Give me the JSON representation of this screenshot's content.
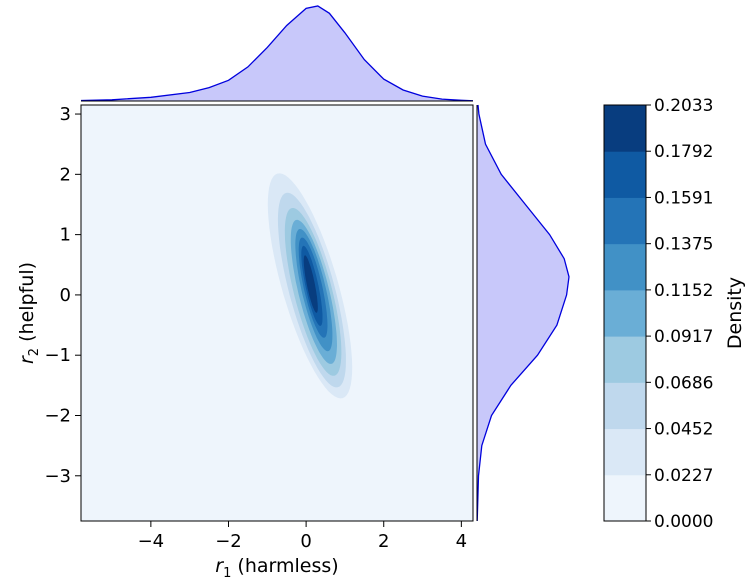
{
  "chart_data": {
    "type": "heatmap",
    "subtype": "bivariate-kde-contour-with-marginals",
    "title": "",
    "xlabel": {
      "base": "r",
      "sub": "1",
      "rest": " (harmless)"
    },
    "ylabel": {
      "base": "r",
      "sub": "2",
      "rest": " (helpful)"
    },
    "xlim": [
      -5.8,
      4.3
    ],
    "ylim": [
      -3.75,
      3.15
    ],
    "x_ticks": [
      -4,
      -2,
      0,
      2,
      4
    ],
    "y_ticks": [
      -3,
      -2,
      -1,
      0,
      1,
      2,
      3
    ],
    "x_tick_labels": [
      "−4",
      "−2",
      "0",
      "2",
      "4"
    ],
    "y_tick_labels": [
      "−3",
      "−2",
      "−1",
      "0",
      "1",
      "2",
      "3"
    ],
    "grid": false,
    "colorbar": {
      "label": "Density",
      "levels": [
        0.0,
        0.0227,
        0.0452,
        0.0686,
        0.0917,
        0.1152,
        0.1375,
        0.1591,
        0.1792,
        0.2033
      ],
      "level_labels": [
        "0.0000",
        "0.0227",
        "0.0452",
        "0.0686",
        "0.0917",
        "0.1152",
        "0.1375",
        "0.1591",
        "0.1792",
        "0.2033"
      ],
      "colors": [
        "#eef5fc",
        "#dae8f6",
        "#bfd8ed",
        "#9dcae1",
        "#6aaed6",
        "#4191c6",
        "#2474b7",
        "#0f5aa3",
        "#083d7f"
      ]
    },
    "contours": [
      {
        "level": 0.0227,
        "cx": 0.1,
        "cy": 0.15,
        "rx": 2.05,
        "ry": 0.68,
        "angle_deg": -64
      },
      {
        "level": 0.0452,
        "cx": 0.15,
        "cy": 0.08,
        "rx": 1.75,
        "ry": 0.56,
        "angle_deg": -66
      },
      {
        "level": 0.0686,
        "cx": 0.18,
        "cy": 0.05,
        "rx": 1.5,
        "ry": 0.47,
        "angle_deg": -67
      },
      {
        "level": 0.0917,
        "cx": 0.2,
        "cy": 0.05,
        "rx": 1.28,
        "ry": 0.38,
        "angle_deg": -68
      },
      {
        "level": 0.1152,
        "cx": 0.2,
        "cy": 0.08,
        "rx": 1.08,
        "ry": 0.3,
        "angle_deg": -69
      },
      {
        "level": 0.1375,
        "cx": 0.18,
        "cy": 0.12,
        "rx": 0.88,
        "ry": 0.23,
        "angle_deg": -70
      },
      {
        "level": 0.1591,
        "cx": 0.15,
        "cy": 0.15,
        "rx": 0.7,
        "ry": 0.16,
        "angle_deg": -71
      },
      {
        "level": 0.1792,
        "cx": 0.12,
        "cy": 0.18,
        "rx": 0.5,
        "ry": 0.1,
        "angle_deg": -72
      }
    ],
    "marginal_x": {
      "x": [
        -5.8,
        -5.0,
        -4.0,
        -3.0,
        -2.5,
        -2.0,
        -1.5,
        -1.0,
        -0.5,
        0.0,
        0.3,
        0.6,
        1.0,
        1.5,
        2.0,
        2.5,
        3.0,
        3.5,
        4.0,
        4.3
      ],
      "density": [
        0.002,
        0.005,
        0.015,
        0.035,
        0.055,
        0.085,
        0.14,
        0.22,
        0.31,
        0.38,
        0.39,
        0.36,
        0.28,
        0.17,
        0.09,
        0.045,
        0.02,
        0.008,
        0.003,
        0.001
      ],
      "fill": "#c8c8fa",
      "line": "#0000dd"
    },
    "marginal_y": {
      "y": [
        -3.75,
        -3.0,
        -2.5,
        -2.0,
        -1.5,
        -1.0,
        -0.5,
        0.0,
        0.3,
        0.6,
        1.0,
        1.5,
        2.0,
        2.5,
        3.0,
        3.15
      ],
      "density": [
        0.001,
        0.006,
        0.02,
        0.06,
        0.14,
        0.25,
        0.33,
        0.37,
        0.38,
        0.36,
        0.3,
        0.2,
        0.1,
        0.035,
        0.008,
        0.004
      ],
      "fill": "#c8c8fa",
      "line": "#0000dd"
    }
  }
}
